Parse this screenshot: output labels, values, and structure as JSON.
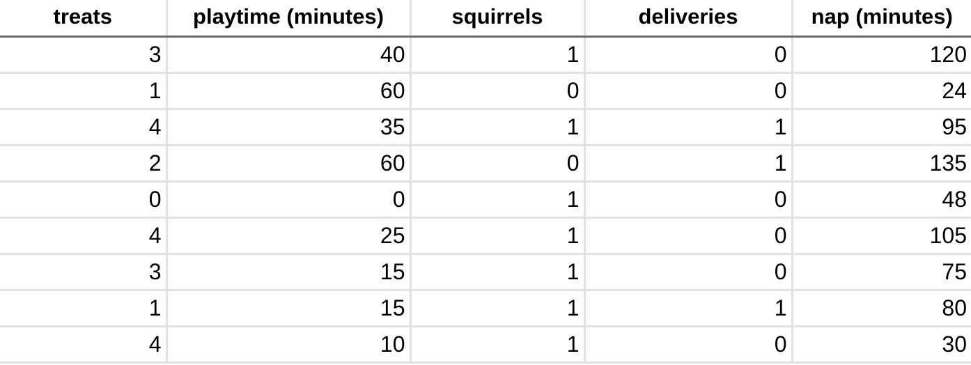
{
  "table": {
    "headers": [
      "treats",
      "playtime (minutes)",
      "squirrels",
      "deliveries",
      "nap (minutes)"
    ],
    "rows": [
      [
        "3",
        "40",
        "1",
        "0",
        "120"
      ],
      [
        "1",
        "60",
        "0",
        "0",
        "24"
      ],
      [
        "4",
        "35",
        "1",
        "1",
        "95"
      ],
      [
        "2",
        "60",
        "0",
        "1",
        "135"
      ],
      [
        "0",
        "0",
        "1",
        "0",
        "48"
      ],
      [
        "4",
        "25",
        "1",
        "0",
        "105"
      ],
      [
        "3",
        "15",
        "1",
        "0",
        "75"
      ],
      [
        "1",
        "15",
        "1",
        "1",
        "80"
      ],
      [
        "4",
        "10",
        "1",
        "0",
        "30"
      ]
    ]
  }
}
